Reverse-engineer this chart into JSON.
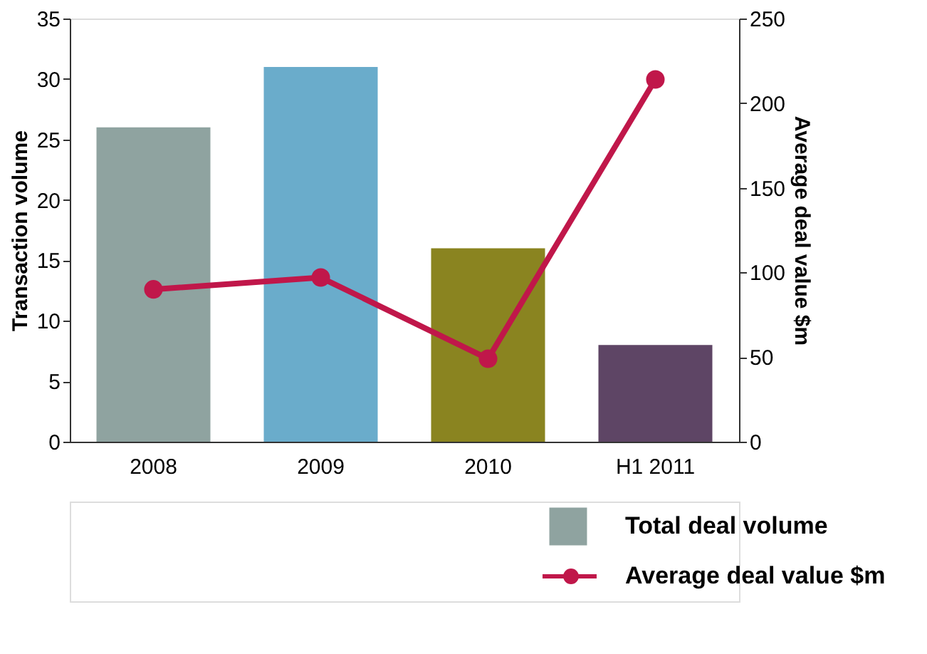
{
  "chart_data": {
    "type": "bar",
    "ylabel": "Transaction volume",
    "y2label": "Average deal value $m",
    "categories": [
      "2008",
      "2009",
      "2010",
      "H1 2011"
    ],
    "series": [
      {
        "name": "Total deal volume",
        "colors": [
          "#8fa3a0",
          "#6aaccb",
          "#8a8420",
          "#5e4565"
        ],
        "values": [
          26,
          31,
          16,
          8
        ]
      },
      {
        "name": "Average deal value $m",
        "type": "line",
        "axis": "y2",
        "color": "#c0174a",
        "values": [
          90,
          97,
          49,
          214
        ],
        "marker": "circle",
        "line_style": "solid"
      }
    ],
    "ylim": [
      0,
      35
    ],
    "yticks": [
      0,
      5,
      10,
      15,
      20,
      25,
      30,
      35
    ],
    "y2lim": [
      0,
      250
    ],
    "y2ticks": [
      0,
      50,
      100,
      150,
      200,
      250
    ],
    "grid": false,
    "legend": "bottom right"
  }
}
